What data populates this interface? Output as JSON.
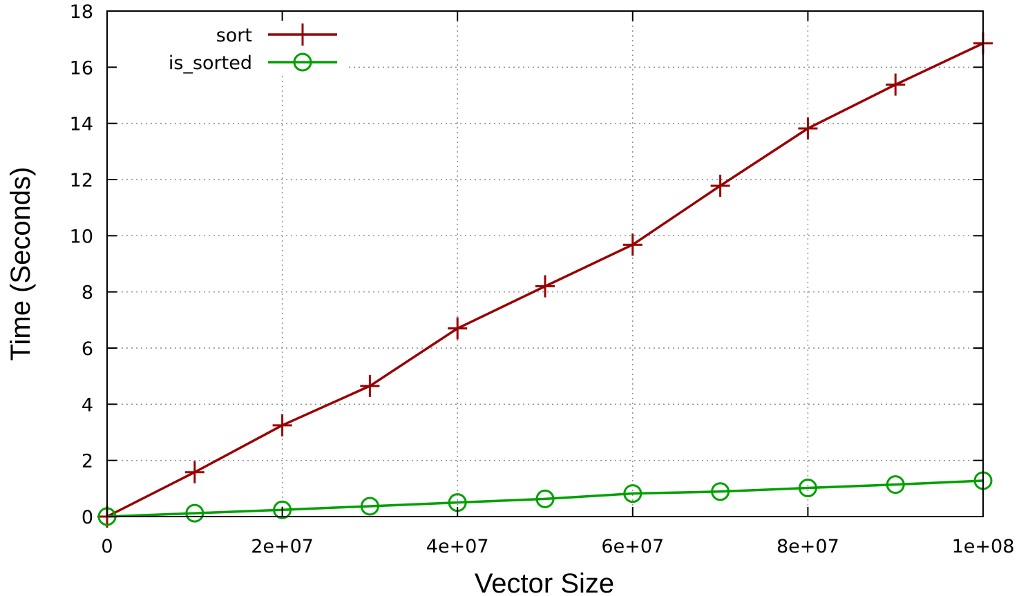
{
  "chart_data": {
    "type": "line",
    "xlabel": "Vector Size",
    "ylabel": "Time (Seconds)",
    "xlim": [
      0,
      100000000
    ],
    "ylim": [
      0,
      18
    ],
    "x_ticks": [
      {
        "value": 0,
        "label": "0"
      },
      {
        "value": 20000000,
        "label": "2e+07"
      },
      {
        "value": 40000000,
        "label": "4e+07"
      },
      {
        "value": 60000000,
        "label": "6e+07"
      },
      {
        "value": 80000000,
        "label": "8e+07"
      },
      {
        "value": 100000000,
        "label": "1e+08"
      }
    ],
    "y_ticks": [
      {
        "value": 0,
        "label": "0"
      },
      {
        "value": 2,
        "label": "2"
      },
      {
        "value": 4,
        "label": "4"
      },
      {
        "value": 6,
        "label": "6"
      },
      {
        "value": 8,
        "label": "8"
      },
      {
        "value": 10,
        "label": "10"
      },
      {
        "value": 12,
        "label": "12"
      },
      {
        "value": 14,
        "label": "14"
      },
      {
        "value": 16,
        "label": "16"
      },
      {
        "value": 18,
        "label": "18"
      }
    ],
    "grid": true,
    "legend_position": "top-left",
    "x": [
      0,
      10000000,
      20000000,
      30000000,
      40000000,
      50000000,
      60000000,
      70000000,
      80000000,
      90000000,
      100000000
    ],
    "series": [
      {
        "name": "sort",
        "color": "#990000",
        "marker": "plus",
        "values": [
          0,
          1.58,
          3.25,
          4.65,
          6.7,
          8.2,
          9.68,
          11.78,
          13.82,
          15.38,
          16.85
        ]
      },
      {
        "name": "is_sorted",
        "color": "#00a000",
        "marker": "circle",
        "values": [
          0,
          0.12,
          0.24,
          0.37,
          0.5,
          0.63,
          0.82,
          0.89,
          1.02,
          1.14,
          1.28
        ]
      }
    ]
  }
}
